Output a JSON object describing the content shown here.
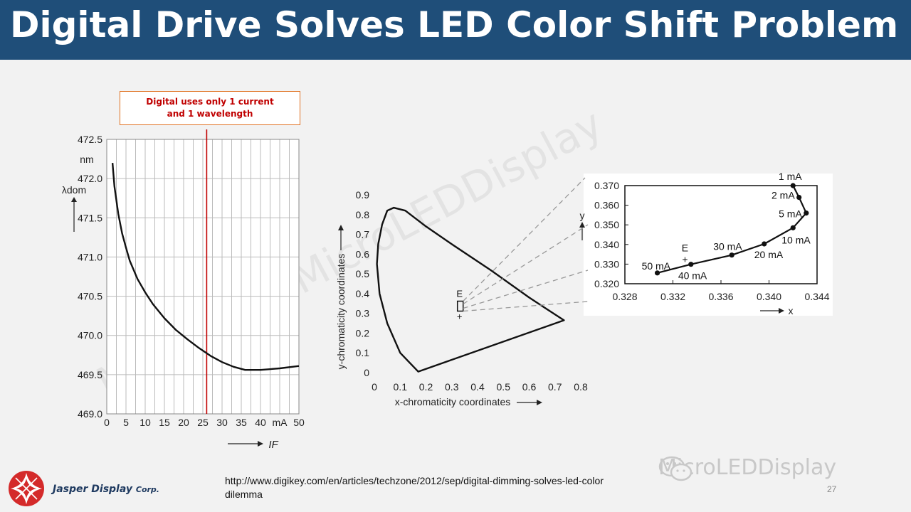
{
  "header": {
    "title": "Digital Drive Solves LED Color Shift Problem",
    "bg_color": "#1f4e79"
  },
  "callout": {
    "line1": "Digital uses only 1 current",
    "line2": "and 1 wavelength",
    "border_color": "#e07020",
    "text_color": "#c00000"
  },
  "footer": {
    "url_line1": "http://www.digikey.com/en/articles/techzone/2012/sep/digital-dimming-solves-led-color",
    "url_line2": "dilemma",
    "company": "Jasper Display",
    "company_suffix": "Corp.",
    "page_number": "27"
  },
  "watermark": {
    "brand_text": "MicroLEDDisplay"
  },
  "chart_data": [
    {
      "type": "line",
      "ylabel": "λdom",
      "yunit": "nm",
      "xlabel": "IF",
      "xunit": "mA",
      "xlim": [
        0,
        50
      ],
      "ylim": [
        469.0,
        472.5
      ],
      "x_ticks": [
        0,
        5,
        10,
        15,
        20,
        25,
        30,
        35,
        40,
        45,
        50
      ],
      "y_ticks": [
        469.0,
        469.5,
        470.0,
        470.5,
        471.0,
        471.5,
        472.0,
        472.5
      ],
      "x_tick_labels": [
        "0",
        "5",
        "10",
        "15",
        "20",
        "25",
        "30",
        "35",
        "40",
        "mA",
        "50"
      ],
      "y_tick_labels": [
        "469.0",
        "469.5",
        "470.0",
        "470.5",
        "471.0",
        "471.5",
        "472.0",
        "472.5"
      ],
      "grid": true,
      "series": [
        {
          "x": [
            1.5,
            2,
            3,
            4,
            5,
            6,
            8,
            10,
            12,
            15,
            18,
            21,
            24,
            27,
            30,
            33,
            36,
            40,
            45,
            50
          ],
          "y": [
            472.2,
            471.9,
            471.55,
            471.3,
            471.12,
            470.95,
            470.72,
            470.55,
            470.4,
            470.22,
            470.07,
            469.95,
            469.84,
            469.74,
            469.66,
            469.6,
            469.56,
            469.56,
            469.58,
            469.61
          ]
        }
      ],
      "marker_line": {
        "x": 26,
        "color": "#c00000"
      }
    },
    {
      "type": "line",
      "xlabel": "x-chromaticity coordinates",
      "ylabel": "y-chromaticity coordinates",
      "xlim": [
        0,
        0.8
      ],
      "ylim": [
        0,
        0.9
      ],
      "x_ticks": [
        0,
        0.1,
        0.2,
        0.3,
        0.4,
        0.5,
        0.6,
        0.7,
        0.8
      ],
      "y_ticks": [
        0,
        0.1,
        0.2,
        0.3,
        0.4,
        0.5,
        0.6,
        0.7,
        0.8,
        0.9
      ],
      "x_tick_labels": [
        "0",
        "0.1",
        "0.2",
        "0.3",
        "0.4",
        "0.5",
        "0.6",
        "0.7",
        "0.8"
      ],
      "y_tick_labels": [
        "0",
        "0.1",
        "0.2",
        "0.3",
        "0.4",
        "0.5",
        "0.6",
        "0.7",
        "0.8",
        "0.9"
      ],
      "outline": {
        "x": [
          0.17,
          0.1,
          0.05,
          0.02,
          0.01,
          0.015,
          0.03,
          0.05,
          0.075,
          0.12,
          0.2,
          0.3,
          0.45,
          0.6,
          0.735,
          0.17
        ],
        "y": [
          0.005,
          0.1,
          0.25,
          0.4,
          0.55,
          0.65,
          0.75,
          0.82,
          0.835,
          0.82,
          0.74,
          0.65,
          0.52,
          0.38,
          0.265,
          0.005
        ]
      },
      "annotation": {
        "label": "E",
        "plus": "+",
        "x": 0.333,
        "y": 0.333
      }
    },
    {
      "type": "line",
      "xlabel": "x",
      "ylabel": "y",
      "xlim": [
        0.328,
        0.344
      ],
      "ylim": [
        0.32,
        0.37
      ],
      "x_ticks": [
        0.328,
        0.332,
        0.336,
        0.34,
        0.344
      ],
      "y_ticks": [
        0.32,
        0.33,
        0.34,
        0.35,
        0.36,
        0.37
      ],
      "x_tick_labels": [
        "0.328",
        "0.332",
        "0.336",
        "0.340",
        "0.344"
      ],
      "y_tick_labels": [
        "0.320",
        "0.330",
        "0.340",
        "0.350",
        "0.360",
        "0.370"
      ],
      "points": [
        {
          "label": "1 mA",
          "x": 0.342,
          "y": 0.37
        },
        {
          "label": "2 mA",
          "x": 0.3425,
          "y": 0.364
        },
        {
          "label": "5 mA",
          "x": 0.3431,
          "y": 0.356
        },
        {
          "label": "10 mA",
          "x": 0.342,
          "y": 0.3485
        },
        {
          "label": "20 mA",
          "x": 0.3396,
          "y": 0.3403
        },
        {
          "label": "30 mA",
          "x": 0.3369,
          "y": 0.3346
        },
        {
          "label": "40 mA",
          "x": 0.3335,
          "y": 0.3299
        },
        {
          "label": "50 mA",
          "x": 0.3307,
          "y": 0.3255
        }
      ],
      "annotation": {
        "label": "E",
        "plus": "+",
        "x": 0.3333,
        "y": 0.3333
      }
    }
  ]
}
